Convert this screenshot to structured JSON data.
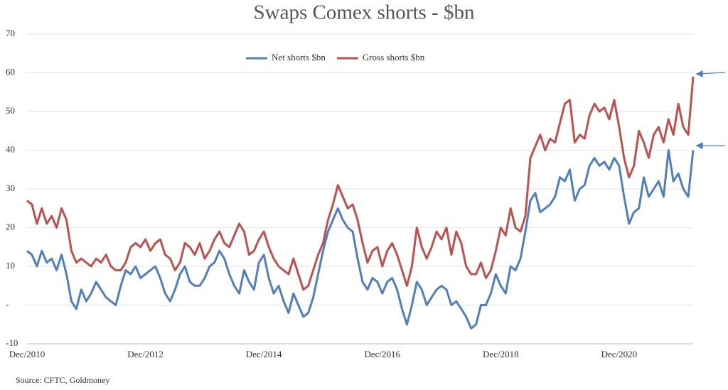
{
  "chart_data": {
    "type": "line",
    "title": "Swaps Comex shorts - $bn",
    "source": "Source: CFTC, Goldmoney",
    "categories": [
      "Dec/2010",
      null,
      null,
      null,
      null,
      null,
      null,
      null,
      null,
      null,
      null,
      null,
      null,
      null,
      null,
      null,
      null,
      null,
      null,
      null,
      null,
      null,
      null,
      null,
      "Dec/2012",
      null,
      null,
      null,
      null,
      null,
      null,
      null,
      null,
      null,
      null,
      null,
      null,
      null,
      null,
      null,
      null,
      null,
      null,
      null,
      null,
      null,
      null,
      null,
      "Dec/2014",
      null,
      null,
      null,
      null,
      null,
      null,
      null,
      null,
      null,
      null,
      null,
      null,
      null,
      null,
      null,
      null,
      null,
      null,
      null,
      null,
      null,
      null,
      null,
      "Dec/2016",
      null,
      null,
      null,
      null,
      null,
      null,
      null,
      null,
      null,
      null,
      null,
      null,
      null,
      null,
      null,
      null,
      null,
      null,
      null,
      null,
      null,
      null,
      null,
      "Dec/2018",
      null,
      null,
      null,
      null,
      null,
      null,
      null,
      null,
      null,
      null,
      null,
      null,
      null,
      null,
      null,
      null,
      null,
      null,
      null,
      null,
      null,
      null,
      null,
      "Dec/2020",
      null,
      null,
      null,
      null,
      null,
      null,
      null,
      null,
      null,
      null,
      null,
      null,
      null,
      null,
      null
    ],
    "series": [
      {
        "name": "Net shorts $bn",
        "color": "#4f7fbf",
        "values": [
          14,
          13,
          10,
          14,
          11,
          12,
          9,
          13,
          8,
          1,
          -1,
          4,
          1,
          3,
          6,
          4,
          2,
          1,
          0,
          5,
          9,
          8,
          10,
          7,
          8,
          9,
          10,
          7,
          3,
          1,
          4,
          8,
          10,
          6,
          5,
          5,
          7,
          10,
          11,
          14,
          12,
          8,
          5,
          3,
          9,
          6,
          4,
          11,
          13,
          7,
          3,
          5,
          1,
          -2,
          3,
          0,
          -3,
          -2,
          2,
          8,
          14,
          19,
          22,
          25,
          22,
          20,
          19,
          12,
          6,
          4,
          7,
          6,
          3,
          6,
          7,
          4,
          -1,
          -5,
          0,
          6,
          4,
          0,
          2,
          4,
          5,
          4,
          0,
          1,
          -1,
          -3,
          -6,
          -5,
          0,
          0,
          3,
          8,
          5,
          3,
          10,
          9,
          12,
          19,
          27,
          29,
          24,
          25,
          26,
          28,
          33,
          32,
          35,
          27,
          30,
          31,
          36,
          38,
          36,
          37,
          35,
          38,
          36,
          28,
          21,
          24,
          25,
          33,
          28,
          30,
          32,
          28,
          40,
          32,
          34,
          30,
          28,
          40
        ]
      },
      {
        "name": "Gross shorts $bn",
        "color": "#c0504d",
        "values": [
          27,
          26,
          21,
          25,
          21,
          23,
          20,
          25,
          22,
          14,
          11,
          12,
          11,
          10,
          12,
          11,
          13,
          10,
          9,
          9,
          11,
          15,
          16,
          15,
          17,
          14,
          16,
          17,
          13,
          12,
          9,
          11,
          16,
          15,
          13,
          16,
          12,
          14,
          17,
          19,
          16,
          15,
          18,
          21,
          19,
          13,
          14,
          17,
          19,
          15,
          12,
          10,
          9,
          8,
          12,
          8,
          4,
          5,
          9,
          13,
          16,
          22,
          26,
          31,
          28,
          25,
          26,
          22,
          16,
          11,
          14,
          15,
          10,
          14,
          16,
          13,
          9,
          5,
          10,
          20,
          15,
          12,
          15,
          19,
          17,
          20,
          13,
          19,
          16,
          10,
          8,
          8,
          11,
          7,
          9,
          14,
          20,
          18,
          25,
          20,
          19,
          23,
          38,
          41,
          44,
          40,
          43,
          42,
          47,
          52,
          53,
          42,
          44,
          43,
          49,
          52,
          50,
          51,
          48,
          53,
          46,
          38,
          33,
          36,
          45,
          42,
          38,
          44,
          46,
          42,
          48,
          44,
          52,
          46,
          44,
          59
        ]
      }
    ],
    "ylim": [
      -10,
      70
    ],
    "yticks": [
      -10,
      {
        "value": 0,
        "label": "-"
      },
      10,
      20,
      30,
      40,
      50,
      60,
      70
    ],
    "grid": true
  }
}
